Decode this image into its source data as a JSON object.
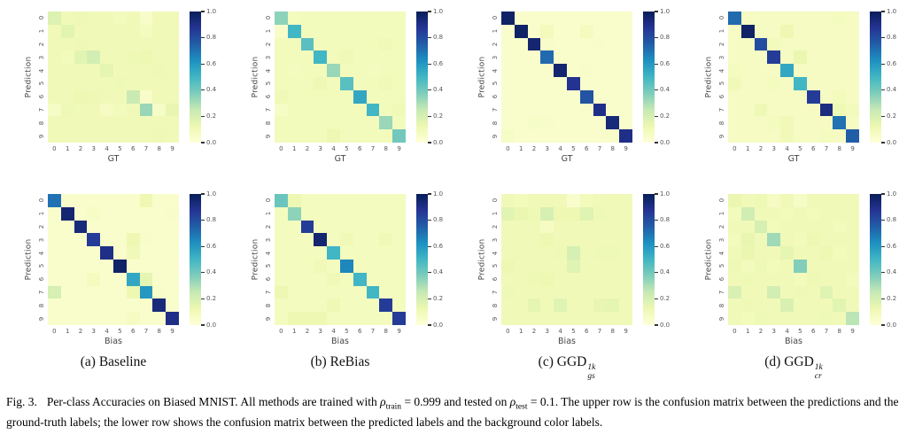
{
  "caption": {
    "fig_label": "Fig. 3.",
    "s1": "Per-class Accuracies on Biased MNIST. All methods are trained with ",
    "rho": "ρ",
    "sub_train": "train",
    "s2": " = 0.999 and tested on ",
    "sub_test": "test",
    "s3": " = 0.1. The upper row is the confusion matrix between the predictions and the ground-truth labels; the lower row shows the confusion matrix between the predicted labels and the background color labels."
  },
  "axes": {
    "tick_labels": [
      "0",
      "1",
      "2",
      "3",
      "4",
      "5",
      "6",
      "7",
      "8",
      "9"
    ]
  },
  "colorbar": {
    "tick_labels": [
      "1.0",
      "0.8",
      "0.6",
      "0.4",
      "0.2",
      "0.0"
    ],
    "colormap": "YlGnBu",
    "anchors": [
      "#ffffd9",
      "#edf8b1",
      "#c7e9b4",
      "#7fcdbb",
      "#41b6c4",
      "#1d91c0",
      "#225ea8",
      "#253494",
      "#081d58"
    ]
  },
  "chart_data": [
    {
      "type": "heatmap",
      "id": "baseline-gt",
      "row": "top",
      "xlabel": "GT",
      "ylabel": "Prediction",
      "x_categories": [
        "0",
        "1",
        "2",
        "3",
        "4",
        "5",
        "6",
        "7",
        "8",
        "9"
      ],
      "y_categories": [
        "0",
        "1",
        "2",
        "3",
        "4",
        "5",
        "6",
        "7",
        "8",
        "9"
      ],
      "vmin": 0,
      "vmax": 1,
      "colormap": "YlGnBu",
      "values": [
        [
          0.18,
          0.1,
          0.11,
          0.1,
          0.1,
          0.09,
          0.1,
          0.05,
          0.1,
          0.1
        ],
        [
          0.1,
          0.16,
          0.1,
          0.1,
          0.1,
          0.1,
          0.1,
          0.08,
          0.1,
          0.1
        ],
        [
          0.1,
          0.1,
          0.11,
          0.1,
          0.1,
          0.1,
          0.1,
          0.1,
          0.1,
          0.1
        ],
        [
          0.1,
          0.09,
          0.16,
          0.21,
          0.1,
          0.1,
          0.11,
          0.12,
          0.1,
          0.1
        ],
        [
          0.1,
          0.1,
          0.1,
          0.1,
          0.15,
          0.1,
          0.1,
          0.1,
          0.11,
          0.1
        ],
        [
          0.1,
          0.1,
          0.1,
          0.1,
          0.1,
          0.11,
          0.1,
          0.1,
          0.1,
          0.1
        ],
        [
          0.1,
          0.1,
          0.12,
          0.11,
          0.1,
          0.1,
          0.24,
          0.05,
          0.1,
          0.1
        ],
        [
          0.06,
          0.11,
          0.1,
          0.1,
          0.07,
          0.09,
          0.1,
          0.33,
          0.06,
          0.14
        ],
        [
          0.1,
          0.1,
          0.1,
          0.1,
          0.1,
          0.1,
          0.1,
          0.1,
          0.1,
          0.1
        ],
        [
          0.1,
          0.1,
          0.1,
          0.1,
          0.1,
          0.1,
          0.1,
          0.1,
          0.11,
          0.1
        ]
      ]
    },
    {
      "type": "heatmap",
      "id": "rebias-gt",
      "row": "top",
      "xlabel": "GT",
      "ylabel": "Prediction",
      "x_categories": [
        "0",
        "1",
        "2",
        "3",
        "4",
        "5",
        "6",
        "7",
        "8",
        "9"
      ],
      "y_categories": [
        "0",
        "1",
        "2",
        "3",
        "4",
        "5",
        "6",
        "7",
        "8",
        "9"
      ],
      "vmin": 0,
      "vmax": 1,
      "colormap": "YlGnBu",
      "values": [
        [
          0.35,
          0.08,
          0.09,
          0.09,
          0.09,
          0.09,
          0.09,
          0.09,
          0.09,
          0.09
        ],
        [
          0.05,
          0.5,
          0.09,
          0.09,
          0.09,
          0.09,
          0.09,
          0.09,
          0.09,
          0.09
        ],
        [
          0.09,
          0.09,
          0.45,
          0.09,
          0.09,
          0.09,
          0.09,
          0.09,
          0.1,
          0.09
        ],
        [
          0.09,
          0.09,
          0.09,
          0.5,
          0.09,
          0.1,
          0.09,
          0.09,
          0.09,
          0.09
        ],
        [
          0.09,
          0.08,
          0.09,
          0.09,
          0.33,
          0.09,
          0.09,
          0.08,
          0.09,
          0.09
        ],
        [
          0.09,
          0.09,
          0.09,
          0.11,
          0.09,
          0.45,
          0.09,
          0.09,
          0.1,
          0.09
        ],
        [
          0.1,
          0.09,
          0.09,
          0.09,
          0.09,
          0.09,
          0.55,
          0.09,
          0.09,
          0.09
        ],
        [
          0.06,
          0.09,
          0.09,
          0.09,
          0.09,
          0.09,
          0.09,
          0.5,
          0.09,
          0.1
        ],
        [
          0.09,
          0.09,
          0.09,
          0.09,
          0.09,
          0.09,
          0.09,
          0.09,
          0.33,
          0.09
        ],
        [
          0.09,
          0.09,
          0.09,
          0.09,
          0.12,
          0.09,
          0.09,
          0.09,
          0.09,
          0.4
        ]
      ]
    },
    {
      "type": "heatmap",
      "id": "ggd-gs-gt",
      "row": "top",
      "xlabel": "GT",
      "ylabel": "Prediction",
      "x_categories": [
        "0",
        "1",
        "2",
        "3",
        "4",
        "5",
        "6",
        "7",
        "8",
        "9"
      ],
      "y_categories": [
        "0",
        "1",
        "2",
        "3",
        "4",
        "5",
        "6",
        "7",
        "8",
        "9"
      ],
      "vmin": 0,
      "vmax": 1,
      "colormap": "YlGnBu",
      "values": [
        [
          0.97,
          0.04,
          0.04,
          0.04,
          0.04,
          0.04,
          0.04,
          0.04,
          0.04,
          0.04
        ],
        [
          0.04,
          0.97,
          0.04,
          0.09,
          0.04,
          0.04,
          0.08,
          0.04,
          0.04,
          0.04
        ],
        [
          0.04,
          0.04,
          0.95,
          0.05,
          0.04,
          0.04,
          0.04,
          0.05,
          0.04,
          0.04
        ],
        [
          0.04,
          0.04,
          0.04,
          0.72,
          0.04,
          0.04,
          0.04,
          0.04,
          0.04,
          0.04
        ],
        [
          0.04,
          0.04,
          0.04,
          0.04,
          0.95,
          0.04,
          0.05,
          0.04,
          0.04,
          0.04
        ],
        [
          0.04,
          0.04,
          0.04,
          0.04,
          0.04,
          0.88,
          0.04,
          0.04,
          0.04,
          0.04
        ],
        [
          0.04,
          0.04,
          0.04,
          0.04,
          0.04,
          0.04,
          0.78,
          0.04,
          0.04,
          0.04
        ],
        [
          0.04,
          0.04,
          0.04,
          0.04,
          0.04,
          0.04,
          0.04,
          0.9,
          0.04,
          0.04
        ],
        [
          0.04,
          0.04,
          0.06,
          0.05,
          0.04,
          0.04,
          0.04,
          0.04,
          0.93,
          0.04
        ],
        [
          0.06,
          0.04,
          0.04,
          0.04,
          0.04,
          0.04,
          0.04,
          0.04,
          0.05,
          0.9
        ]
      ]
    },
    {
      "type": "heatmap",
      "id": "ggd-cr-gt",
      "row": "top",
      "xlabel": "GT",
      "ylabel": "Prediction",
      "x_categories": [
        "0",
        "1",
        "2",
        "3",
        "4",
        "5",
        "6",
        "7",
        "8",
        "9"
      ],
      "y_categories": [
        "0",
        "1",
        "2",
        "3",
        "4",
        "5",
        "6",
        "7",
        "8",
        "9"
      ],
      "vmin": 0,
      "vmax": 1,
      "colormap": "YlGnBu",
      "values": [
        [
          0.72,
          0.07,
          0.07,
          0.07,
          0.07,
          0.07,
          0.07,
          0.07,
          0.08,
          0.07
        ],
        [
          0.07,
          0.97,
          0.07,
          0.07,
          0.12,
          0.07,
          0.07,
          0.07,
          0.07,
          0.07
        ],
        [
          0.07,
          0.07,
          0.8,
          0.09,
          0.07,
          0.07,
          0.07,
          0.07,
          0.07,
          0.07
        ],
        [
          0.07,
          0.07,
          0.07,
          0.85,
          0.07,
          0.13,
          0.07,
          0.07,
          0.07,
          0.07
        ],
        [
          0.08,
          0.07,
          0.07,
          0.07,
          0.55,
          0.07,
          0.07,
          0.07,
          0.07,
          0.07
        ],
        [
          0.1,
          0.07,
          0.07,
          0.08,
          0.07,
          0.5,
          0.07,
          0.07,
          0.07,
          0.07
        ],
        [
          0.07,
          0.07,
          0.07,
          0.07,
          0.07,
          0.07,
          0.85,
          0.07,
          0.09,
          0.07
        ],
        [
          0.07,
          0.07,
          0.11,
          0.07,
          0.07,
          0.07,
          0.07,
          0.92,
          0.11,
          0.09
        ],
        [
          0.07,
          0.07,
          0.07,
          0.08,
          0.1,
          0.07,
          0.07,
          0.07,
          0.7,
          0.07
        ],
        [
          0.07,
          0.07,
          0.07,
          0.07,
          0.1,
          0.07,
          0.07,
          0.08,
          0.07,
          0.75
        ]
      ]
    },
    {
      "type": "heatmap",
      "id": "baseline-bias",
      "row": "bottom",
      "xlabel": "Bias",
      "ylabel": "Prediction",
      "subcaption": {
        "prefix": "(a)",
        "name": "Baseline",
        "sup": "",
        "sub": ""
      },
      "x_categories": [
        "0",
        "1",
        "2",
        "3",
        "4",
        "5",
        "6",
        "7",
        "8",
        "9"
      ],
      "y_categories": [
        "0",
        "1",
        "2",
        "3",
        "4",
        "5",
        "6",
        "7",
        "8",
        "9"
      ],
      "vmin": 0,
      "vmax": 1,
      "colormap": "YlGnBu",
      "values": [
        [
          0.7,
          0.04,
          0.04,
          0.04,
          0.04,
          0.04,
          0.04,
          0.12,
          0.04,
          0.04
        ],
        [
          0.04,
          0.95,
          0.04,
          0.06,
          0.04,
          0.04,
          0.04,
          0.04,
          0.04,
          0.05
        ],
        [
          0.04,
          0.04,
          0.93,
          0.04,
          0.04,
          0.04,
          0.04,
          0.04,
          0.04,
          0.04
        ],
        [
          0.04,
          0.04,
          0.04,
          0.85,
          0.04,
          0.04,
          0.12,
          0.05,
          0.04,
          0.04
        ],
        [
          0.04,
          0.04,
          0.04,
          0.04,
          0.9,
          0.04,
          0.1,
          0.04,
          0.04,
          0.04
        ],
        [
          0.04,
          0.04,
          0.04,
          0.04,
          0.04,
          0.97,
          0.04,
          0.04,
          0.04,
          0.04
        ],
        [
          0.04,
          0.04,
          0.04,
          0.08,
          0.04,
          0.04,
          0.55,
          0.15,
          0.04,
          0.04
        ],
        [
          0.2,
          0.04,
          0.04,
          0.04,
          0.04,
          0.04,
          0.12,
          0.6,
          0.05,
          0.04
        ],
        [
          0.04,
          0.04,
          0.04,
          0.04,
          0.04,
          0.04,
          0.04,
          0.04,
          0.93,
          0.04
        ],
        [
          0.04,
          0.04,
          0.04,
          0.04,
          0.04,
          0.04,
          0.07,
          0.04,
          0.04,
          0.9
        ]
      ]
    },
    {
      "type": "heatmap",
      "id": "rebias-bias",
      "row": "bottom",
      "xlabel": "Bias",
      "ylabel": "Prediction",
      "subcaption": {
        "prefix": "(b)",
        "name": "ReBias",
        "sup": "",
        "sub": ""
      },
      "x_categories": [
        "0",
        "1",
        "2",
        "3",
        "4",
        "5",
        "6",
        "7",
        "8",
        "9"
      ],
      "y_categories": [
        "0",
        "1",
        "2",
        "3",
        "4",
        "5",
        "6",
        "7",
        "8",
        "9"
      ],
      "vmin": 0,
      "vmax": 1,
      "colormap": "YlGnBu",
      "values": [
        [
          0.42,
          0.12,
          0.08,
          0.08,
          0.08,
          0.08,
          0.08,
          0.08,
          0.08,
          0.08
        ],
        [
          0.08,
          0.35,
          0.08,
          0.08,
          0.08,
          0.08,
          0.08,
          0.08,
          0.08,
          0.08
        ],
        [
          0.08,
          0.08,
          0.85,
          0.08,
          0.08,
          0.08,
          0.08,
          0.08,
          0.08,
          0.08
        ],
        [
          0.08,
          0.08,
          0.08,
          0.95,
          0.08,
          0.1,
          0.08,
          0.08,
          0.1,
          0.08
        ],
        [
          0.08,
          0.08,
          0.08,
          0.08,
          0.5,
          0.08,
          0.08,
          0.08,
          0.08,
          0.08
        ],
        [
          0.08,
          0.08,
          0.08,
          0.1,
          0.08,
          0.65,
          0.08,
          0.08,
          0.08,
          0.08
        ],
        [
          0.08,
          0.08,
          0.08,
          0.08,
          0.1,
          0.08,
          0.5,
          0.08,
          0.08,
          0.08
        ],
        [
          0.12,
          0.08,
          0.08,
          0.08,
          0.08,
          0.08,
          0.08,
          0.5,
          0.08,
          0.08
        ],
        [
          0.08,
          0.08,
          0.08,
          0.08,
          0.11,
          0.08,
          0.08,
          0.08,
          0.85,
          0.08
        ],
        [
          0.08,
          0.12,
          0.12,
          0.12,
          0.08,
          0.08,
          0.08,
          0.08,
          0.08,
          0.85
        ]
      ]
    },
    {
      "type": "heatmap",
      "id": "ggd-gs-bias",
      "row": "bottom",
      "xlabel": "Bias",
      "ylabel": "Prediction",
      "subcaption": {
        "prefix": "(c)",
        "name": "GGD",
        "sup": "1k",
        "sub": "gs"
      },
      "x_categories": [
        "0",
        "1",
        "2",
        "3",
        "4",
        "5",
        "6",
        "7",
        "8",
        "9"
      ],
      "y_categories": [
        "0",
        "1",
        "2",
        "3",
        "4",
        "5",
        "6",
        "7",
        "8",
        "9"
      ],
      "vmin": 0,
      "vmax": 1,
      "colormap": "YlGnBu",
      "values": [
        [
          0.1,
          0.09,
          0.1,
          0.1,
          0.1,
          0.04,
          0.09,
          0.1,
          0.1,
          0.1
        ],
        [
          0.16,
          0.13,
          0.11,
          0.2,
          0.12,
          0.12,
          0.17,
          0.11,
          0.1,
          0.1
        ],
        [
          0.1,
          0.1,
          0.1,
          0.07,
          0.1,
          0.1,
          0.1,
          0.1,
          0.1,
          0.1
        ],
        [
          0.1,
          0.1,
          0.1,
          0.12,
          0.1,
          0.1,
          0.1,
          0.1,
          0.1,
          0.1
        ],
        [
          0.1,
          0.1,
          0.1,
          0.1,
          0.11,
          0.2,
          0.1,
          0.11,
          0.11,
          0.1
        ],
        [
          0.12,
          0.1,
          0.1,
          0.1,
          0.1,
          0.17,
          0.1,
          0.1,
          0.1,
          0.1
        ],
        [
          0.1,
          0.1,
          0.11,
          0.12,
          0.1,
          0.1,
          0.1,
          0.1,
          0.1,
          0.1
        ],
        [
          0.11,
          0.1,
          0.1,
          0.1,
          0.1,
          0.1,
          0.1,
          0.1,
          0.1,
          0.1
        ],
        [
          0.1,
          0.1,
          0.15,
          0.1,
          0.17,
          0.1,
          0.1,
          0.14,
          0.15,
          0.1
        ],
        [
          0.1,
          0.1,
          0.1,
          0.1,
          0.1,
          0.1,
          0.1,
          0.1,
          0.1,
          0.1
        ]
      ]
    },
    {
      "type": "heatmap",
      "id": "ggd-cr-bias",
      "row": "bottom",
      "xlabel": "Bias",
      "ylabel": "Prediction",
      "subcaption": {
        "prefix": "(d)",
        "name": "GGD",
        "sup": "1k",
        "sub": "cr"
      },
      "x_categories": [
        "0",
        "1",
        "2",
        "3",
        "4",
        "5",
        "6",
        "7",
        "8",
        "9"
      ],
      "y_categories": [
        "0",
        "1",
        "2",
        "3",
        "4",
        "5",
        "6",
        "7",
        "8",
        "9"
      ],
      "vmin": 0,
      "vmax": 1,
      "colormap": "YlGnBu",
      "values": [
        [
          0.13,
          0.1,
          0.11,
          0.07,
          0.1,
          0.06,
          0.1,
          0.1,
          0.1,
          0.1
        ],
        [
          0.09,
          0.22,
          0.1,
          0.1,
          0.09,
          0.1,
          0.09,
          0.1,
          0.1,
          0.1
        ],
        [
          0.1,
          0.1,
          0.2,
          0.09,
          0.1,
          0.1,
          0.1,
          0.1,
          0.09,
          0.1
        ],
        [
          0.09,
          0.14,
          0.1,
          0.32,
          0.1,
          0.09,
          0.12,
          0.1,
          0.1,
          0.1
        ],
        [
          0.1,
          0.13,
          0.1,
          0.1,
          0.15,
          0.1,
          0.1,
          0.12,
          0.09,
          0.1
        ],
        [
          0.11,
          0.09,
          0.11,
          0.09,
          0.1,
          0.37,
          0.1,
          0.1,
          0.1,
          0.1
        ],
        [
          0.1,
          0.11,
          0.1,
          0.1,
          0.1,
          0.09,
          0.11,
          0.1,
          0.1,
          0.09
        ],
        [
          0.19,
          0.1,
          0.1,
          0.21,
          0.1,
          0.11,
          0.1,
          0.17,
          0.1,
          0.1
        ],
        [
          0.1,
          0.11,
          0.1,
          0.1,
          0.19,
          0.1,
          0.1,
          0.1,
          0.16,
          0.1
        ],
        [
          0.1,
          0.09,
          0.11,
          0.1,
          0.1,
          0.1,
          0.1,
          0.11,
          0.1,
          0.27
        ]
      ]
    }
  ]
}
